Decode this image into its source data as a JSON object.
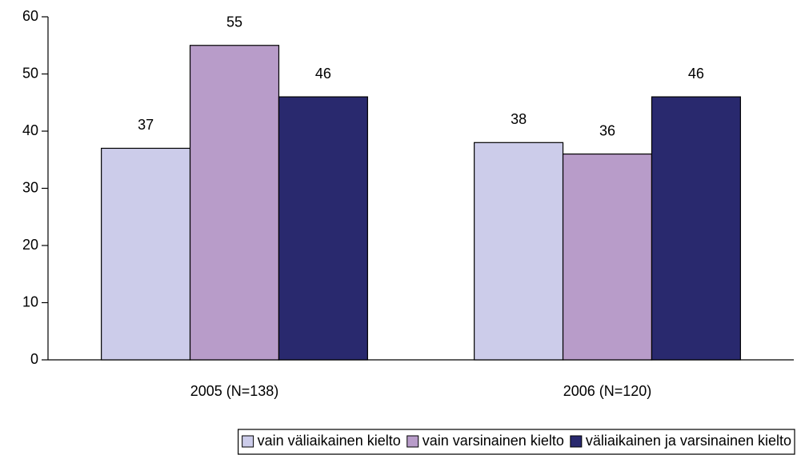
{
  "chart_data": {
    "type": "bar",
    "categories": [
      "2005 (N=138)",
      "2006 (N=120)"
    ],
    "series": [
      {
        "name": "vain väliaikainen kielto",
        "color": "#ccccea",
        "values": [
          37,
          38
        ]
      },
      {
        "name": "vain varsinainen kielto",
        "color": "#b89cc9",
        "values": [
          55,
          36
        ]
      },
      {
        "name": "väliaikainen ja varsinainen kielto",
        "color": "#29296e",
        "values": [
          46,
          46
        ]
      }
    ],
    "ylim": [
      0,
      60
    ],
    "yticks": [
      0,
      10,
      20,
      30,
      40,
      50,
      60
    ],
    "grid": false,
    "legend": "bottom-right"
  }
}
